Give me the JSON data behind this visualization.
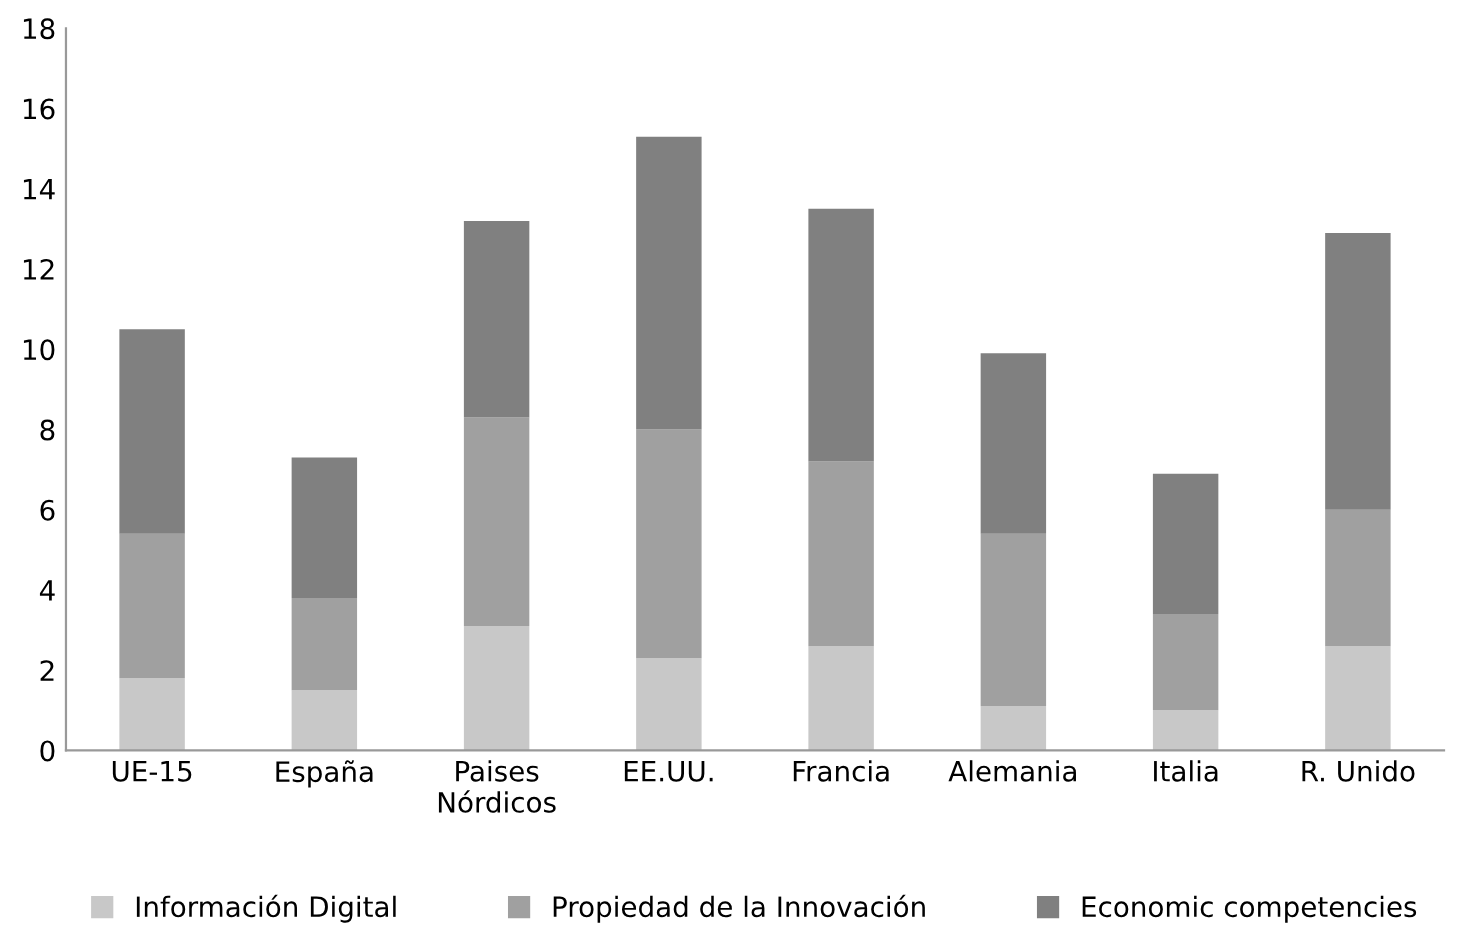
{
  "chart_data": {
    "type": "bar",
    "stacked": true,
    "categories": [
      "UE-15",
      "España",
      "Paises\nNórdicos",
      "EE.UU.",
      "Francia",
      "Alemania",
      "Italia",
      "R. Unido"
    ],
    "series": [
      {
        "name": "Información Digital",
        "color": "#c8c8c8",
        "values": [
          1.8,
          1.5,
          3.1,
          2.3,
          2.6,
          1.1,
          1.0,
          2.6
        ]
      },
      {
        "name": "Propiedad de la Innovación",
        "color": "#a0a0a0",
        "values": [
          3.6,
          2.3,
          5.2,
          5.7,
          4.6,
          4.3,
          2.4,
          3.4
        ]
      },
      {
        "name": "Economic competencies",
        "color": "#808080",
        "values": [
          5.1,
          3.5,
          4.9,
          7.3,
          6.3,
          4.5,
          3.5,
          6.9
        ]
      }
    ],
    "ylim": [
      0,
      18
    ],
    "yticks": [
      0,
      2,
      4,
      6,
      8,
      10,
      12,
      14,
      16,
      18
    ],
    "grid": false,
    "legend": "bottom"
  }
}
